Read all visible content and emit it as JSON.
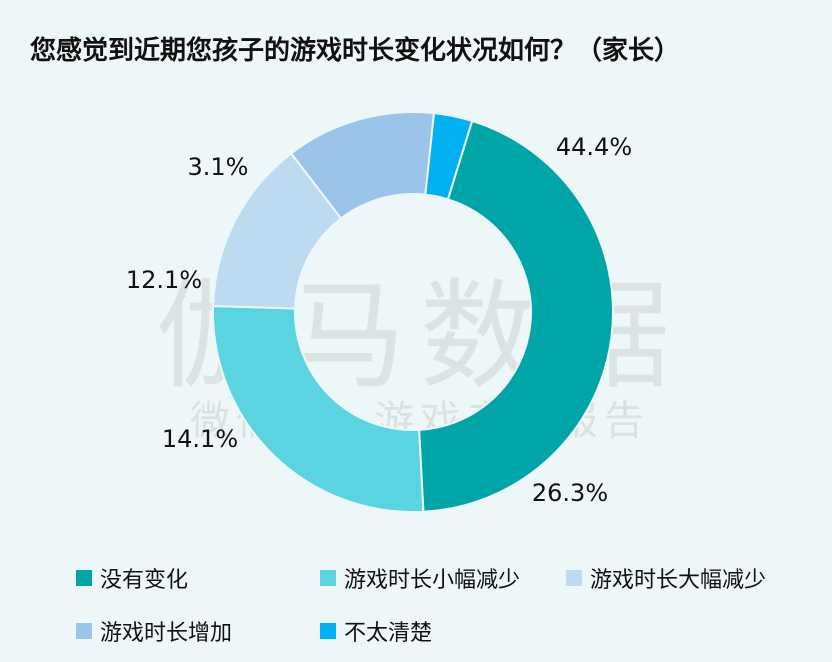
{
  "chart_data": {
    "type": "pie",
    "title": "您感觉到近期您孩子的游戏时长变化状况如何？（家长）",
    "categories": [
      "没有变化",
      "游戏时长小幅减少",
      "游戏时长大幅减少",
      "游戏时长增加",
      "不太清楚"
    ],
    "values": [
      44.4,
      26.3,
      14.1,
      12.1,
      3.1
    ],
    "value_labels": [
      "44.4%",
      "26.3%",
      "14.1%",
      "12.1%",
      "3.1%"
    ],
    "colors": [
      "#00a5a8",
      "#5ad4e0",
      "#bcdaf0",
      "#9ac4ea",
      "#00b0f0"
    ],
    "legend_position": "bottom",
    "donut": true
  },
  "watermark": {
    "main": "伽马数据",
    "sub": "微信号：游戏产业报告"
  }
}
